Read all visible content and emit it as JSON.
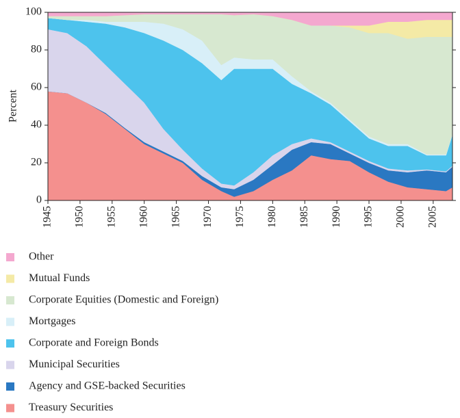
{
  "chart_data": {
    "type": "stacked_area",
    "ylabel": "Percent",
    "x": [
      1945,
      1948,
      1951,
      1954,
      1957,
      1960,
      1963,
      1966,
      1969,
      1972,
      1974,
      1977,
      1980,
      1983,
      1986,
      1989,
      1992,
      1995,
      1998,
      2001,
      2004,
      2007,
      2008
    ],
    "xlim": [
      1945,
      2008
    ],
    "xticks": [
      1945,
      1950,
      1955,
      1960,
      1965,
      1970,
      1975,
      1980,
      1985,
      1990,
      1995,
      2000,
      2005
    ],
    "ylim": [
      0,
      100
    ],
    "yticks": [
      0,
      20,
      40,
      60,
      80,
      100
    ],
    "series": [
      {
        "name": "Treasury Securities",
        "color": "#f4908e",
        "values": [
          58,
          57,
          52,
          46,
          38,
          30,
          25,
          20,
          11,
          5,
          2,
          5,
          11,
          16,
          24,
          22,
          21,
          15,
          10,
          7,
          6,
          5,
          7
        ]
      },
      {
        "name": "Agency and GSE-backed Securities",
        "color": "#2a78c2",
        "values": [
          0,
          0,
          0,
          0.5,
          0.5,
          1,
          1,
          1,
          2,
          2,
          4,
          6,
          8,
          11,
          7,
          8,
          4,
          5,
          6,
          8,
          10,
          10,
          11
        ]
      },
      {
        "name": "Municipal Securities",
        "color": "#d9d5ec",
        "values": [
          33,
          32,
          30,
          25.5,
          23.5,
          21,
          12,
          6,
          4,
          2,
          2,
          4,
          5,
          3,
          2,
          1,
          1,
          1,
          1,
          1,
          0.5,
          0.5,
          0.5
        ]
      },
      {
        "name": "Corporate and Foreign Bonds",
        "color": "#4dc3ed",
        "values": [
          6,
          7,
          13,
          22,
          30,
          37,
          47,
          53,
          56,
          55,
          62,
          55,
          46,
          32,
          24,
          20,
          16,
          12,
          12,
          13,
          7.5,
          8.5,
          16.5
        ]
      },
      {
        "name": "Mortgages",
        "color": "#d8eff8",
        "values": [
          0,
          0,
          1,
          1,
          3,
          6,
          9,
          11,
          12,
          8,
          6,
          5,
          5,
          4,
          1,
          1,
          1,
          1,
          1,
          1,
          0.5,
          0.5,
          0.5
        ]
      },
      {
        "name": "Corporate Equities (Domestic and Foreign)",
        "color": "#d7e8d0",
        "values": [
          1,
          2,
          2,
          3,
          3.5,
          4,
          5,
          8,
          14,
          27,
          22.5,
          24,
          23,
          30,
          35,
          41,
          49,
          55,
          59,
          56,
          62.5,
          62.5,
          51.5
        ]
      },
      {
        "name": "Mutual Funds",
        "color": "#f4eaa6",
        "values": [
          0,
          0,
          0,
          0,
          0,
          0,
          0,
          0,
          0,
          0,
          0,
          0,
          0,
          0,
          0,
          0,
          1,
          4,
          6,
          9,
          9,
          9,
          9
        ]
      },
      {
        "name": "Other",
        "color": "#f4a8cf",
        "values": [
          2,
          2,
          2,
          2,
          1.5,
          1,
          1,
          1,
          1,
          1,
          1.5,
          1,
          2,
          4,
          7,
          7,
          7,
          7,
          5,
          5,
          4,
          4,
          4
        ]
      }
    ]
  }
}
